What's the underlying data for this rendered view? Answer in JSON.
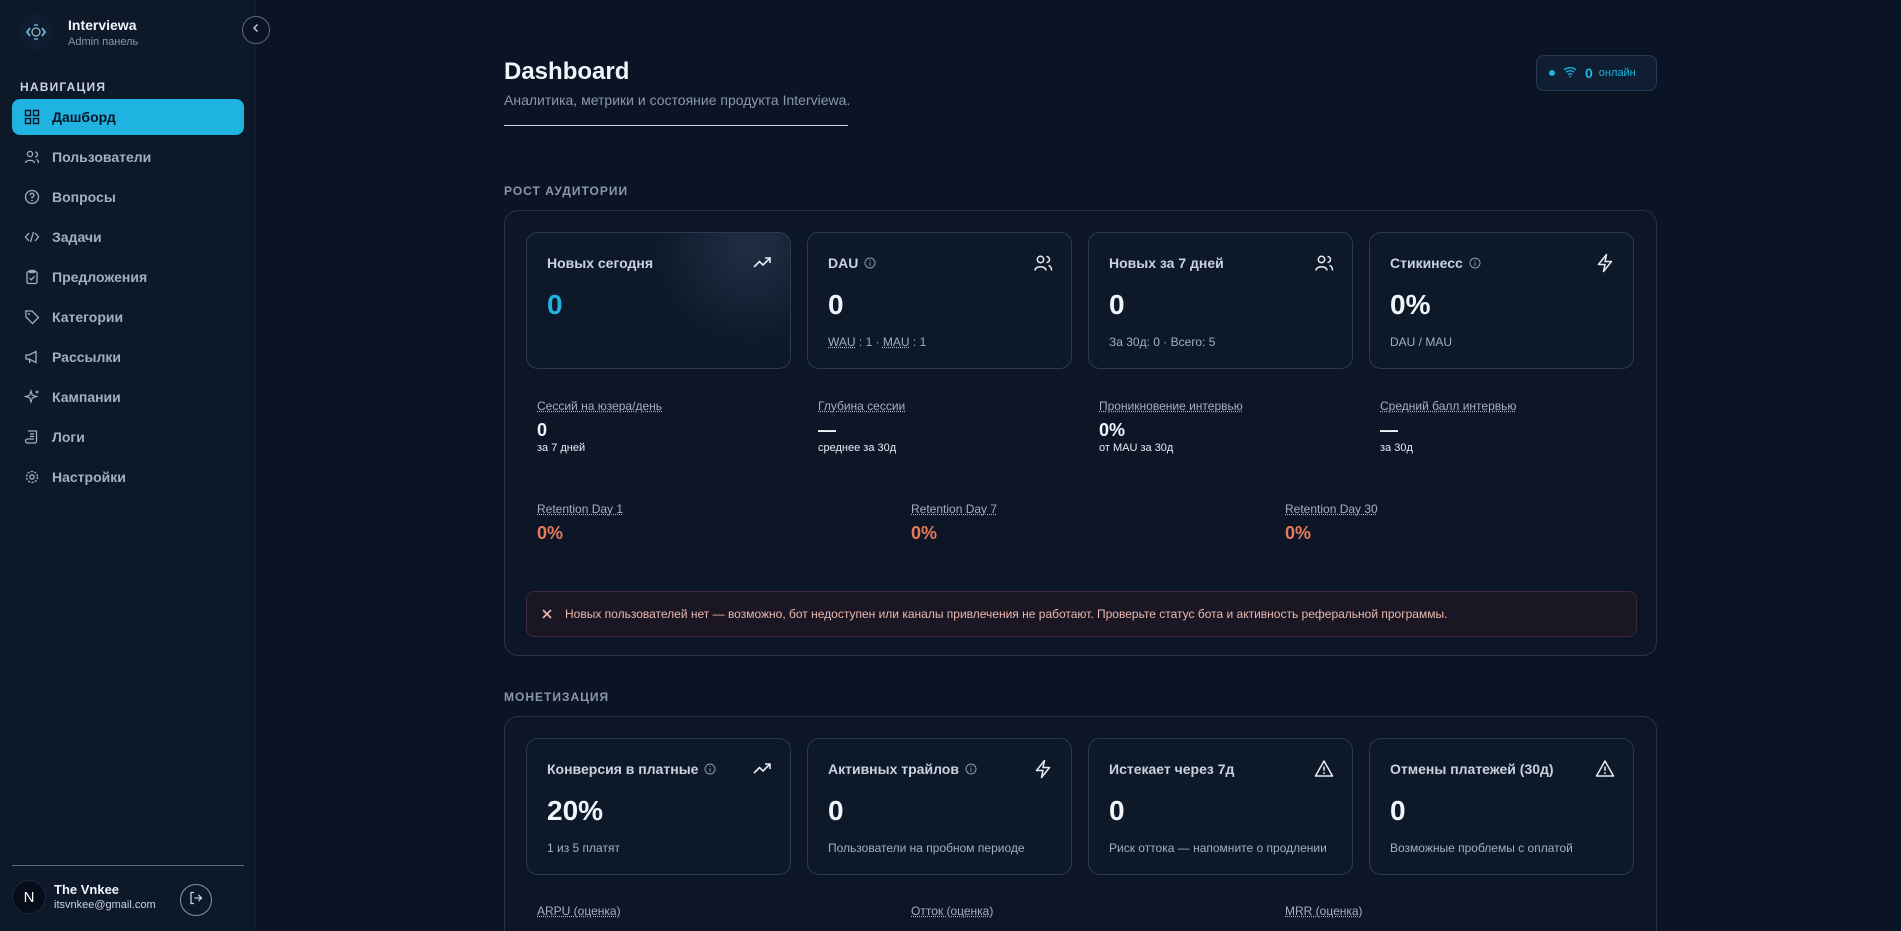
{
  "brand": {
    "name": "Interviewa",
    "subtitle": "Admin панель"
  },
  "nav": {
    "title": "НАВИГАЦИЯ",
    "items": [
      {
        "label": "Дашборд",
        "icon": "grid-icon",
        "active": true
      },
      {
        "label": "Пользователи",
        "icon": "users-icon"
      },
      {
        "label": "Вопросы",
        "icon": "help-circle-icon"
      },
      {
        "label": "Задачи",
        "icon": "code-icon"
      },
      {
        "label": "Предложения",
        "icon": "clipboard-icon"
      },
      {
        "label": "Категории",
        "icon": "tag-icon"
      },
      {
        "label": "Рассылки",
        "icon": "megaphone-icon"
      },
      {
        "label": "Кампании",
        "icon": "sparkles-icon"
      },
      {
        "label": "Логи",
        "icon": "scroll-icon"
      },
      {
        "label": "Настройки",
        "icon": "gear-icon"
      }
    ]
  },
  "user": {
    "initial": "N",
    "name": "The Vnkee",
    "email": "itsvnkee@gmail.com"
  },
  "header": {
    "title": "Dashboard",
    "subtitle": "Аналитика, метрики и состояние продукта Interviewa.",
    "online_count": "0",
    "online_label": "онлайн"
  },
  "audience": {
    "label": "РОСТ АУДИТОРИИ",
    "cards": [
      {
        "title": "Новых сегодня",
        "value": "0",
        "sub": "",
        "icon": "trending-up-icon"
      },
      {
        "title": "DAU",
        "value": "0",
        "sub_wau": "WAU",
        "sub_wau_val": " : 1 · ",
        "sub_mau": "MAU",
        "sub_mau_val": " : 1",
        "icon": "users-icon"
      },
      {
        "title": "Новых за 7 дней",
        "value": "0",
        "sub": "За 30д: 0 · Всего: 5",
        "icon": "users-icon"
      },
      {
        "title": "Стикинесс",
        "value": "0%",
        "sub": "DAU / MAU",
        "icon": "zap-icon"
      }
    ],
    "metrics": [
      {
        "label": "Сессий на юзера/день",
        "value": "0",
        "sub": "за 7 дней"
      },
      {
        "label": "Глубина сессии",
        "value": "—",
        "sub": "среднее за 30д"
      },
      {
        "label": "Проникновение интервью",
        "value": "0%",
        "sub": "от MAU за 30д"
      },
      {
        "label": "Средний балл интервью",
        "value": "—",
        "sub": "за 30д"
      }
    ],
    "retention": [
      {
        "label": "Retention Day 1",
        "value": "0%"
      },
      {
        "label": "Retention Day 7",
        "value": "0%"
      },
      {
        "label": "Retention Day 30",
        "value": "0%"
      }
    ],
    "alert": "Новых пользователей нет — возможно, бот недоступен или каналы привлечения не работают. Проверьте статус бота и активность реферальной программы."
  },
  "monetization": {
    "label": "МОНЕТИЗАЦИЯ",
    "cards": [
      {
        "title": "Конверсия в платные",
        "value": "20%",
        "sub": "1 из 5 платят",
        "icon": "trending-up-icon"
      },
      {
        "title": "Активных трайлов",
        "value": "0",
        "sub": "Пользователи на пробном периоде",
        "icon": "zap-icon"
      },
      {
        "title": "Истекает через 7д",
        "value": "0",
        "sub": "Риск оттока — напомните о продлении",
        "icon": "alert-triangle-icon"
      },
      {
        "title": "Отмены платежей (30д)",
        "value": "0",
        "sub": "Возможные проблемы с оплатой",
        "icon": "alert-triangle-icon"
      }
    ],
    "metrics": [
      {
        "label": "ARPU (оценка)"
      },
      {
        "label": "Отток (оценка)"
      },
      {
        "label": "MRR (оценка)"
      }
    ]
  },
  "colors": {
    "accent": "#1fb3e1",
    "background": "#0b1424",
    "warning": "#e8795a"
  }
}
